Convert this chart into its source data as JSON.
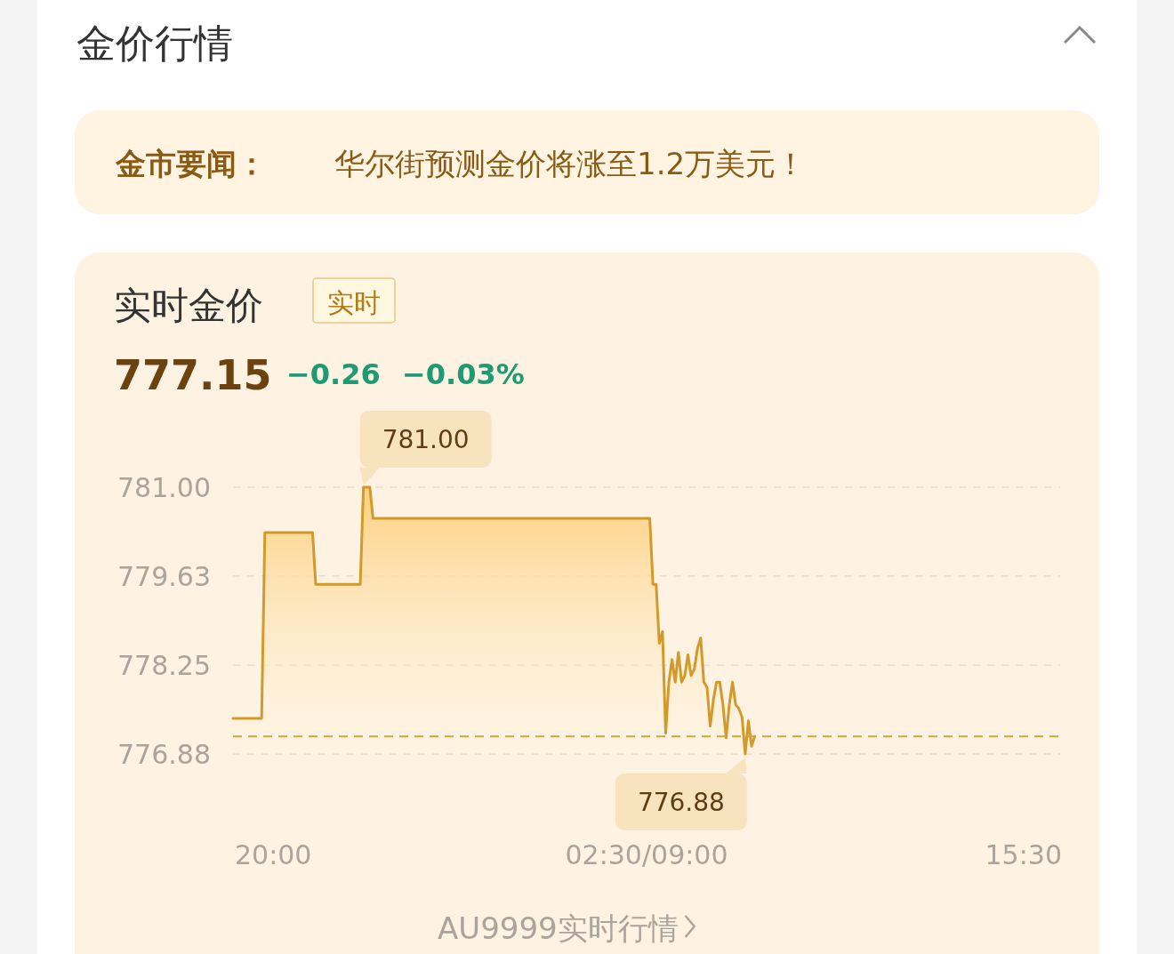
{
  "chart_data": {
    "type": "area",
    "title": "金价行情",
    "subtitle": "实时金价",
    "annotations": [
      "金市要闻：",
      "华尔街预测金价将涨至1.2万美元！",
      "实时",
      "777.15",
      "−0.26",
      "−0.03%",
      "781.00",
      {
        "text": "776.88",
        "y": 776.88
      },
      "AU9999实时行情",
      "20:00",
      "02:30/09:00",
      "15:30"
    ],
    "categories": [
      null,
      null,
      null,
      null,
      null,
      null,
      null,
      null,
      null,
      null,
      null,
      null,
      null,
      null,
      null,
      null,
      null,
      null,
      null,
      null,
      null,
      null,
      null,
      null,
      null,
      null,
      null,
      null,
      null,
      null,
      null,
      null,
      null,
      null,
      null,
      null,
      null,
      null,
      null,
      null,
      null,
      null,
      null,
      null,
      null,
      null,
      null,
      null,
      null,
      null,
      null,
      null,
      null,
      null,
      null,
      null,
      null,
      null,
      null,
      null,
      null,
      null,
      null,
      null,
      null,
      null,
      null,
      null,
      null,
      null,
      null,
      null,
      null,
      null,
      null,
      null,
      null,
      null,
      null,
      null,
      null,
      null,
      null,
      null,
      null,
      null,
      null,
      null,
      null,
      null,
      null,
      null,
      null,
      null,
      null,
      null,
      null,
      null,
      null,
      null,
      null,
      null,
      null,
      null,
      null,
      null,
      null,
      null,
      null,
      null,
      null,
      null,
      null,
      null,
      null,
      null,
      null,
      null,
      null,
      null,
      null,
      null,
      null,
      null,
      null,
      null,
      null,
      null,
      null,
      null,
      null,
      null,
      null,
      null,
      null,
      null,
      null,
      null,
      null,
      null,
      null,
      null,
      null,
      null,
      null,
      null,
      null,
      null,
      null,
      null,
      null,
      null,
      null,
      null,
      null,
      null,
      null,
      null,
      null,
      null,
      null,
      null,
      null,
      null,
      null,
      null,
      null,
      null,
      null,
      null,
      null,
      null,
      null,
      null,
      null,
      null,
      null,
      null,
      null,
      null,
      null,
      null,
      null,
      null,
      null,
      null,
      null,
      null,
      null,
      null,
      null,
      null,
      null,
      null,
      null,
      null,
      null,
      null,
      null,
      null,
      null,
      null,
      null,
      null,
      null,
      null,
      null,
      null,
      null,
      null,
      null,
      null,
      null,
      null,
      null,
      null,
      null,
      null,
      null,
      null,
      null,
      null,
      null,
      null,
      null,
      null,
      null,
      null,
      null,
      null,
      null,
      null,
      null,
      null,
      null,
      null,
      null,
      null,
      null,
      null,
      null,
      null,
      null,
      null,
      null,
      null,
      null,
      null,
      null,
      null,
      null,
      null,
      null,
      null,
      null,
      null,
      null,
      null,
      null,
      null,
      null
    ],
    "series": [
      {
        "color": "#d19a2a",
        "values": [
          777.43,
          777.43,
          777.43,
          777.43,
          777.43,
          777.43,
          777.43,
          777.43,
          777.43,
          777.43,
          780.3,
          780.3,
          780.3,
          780.3,
          780.3,
          780.3,
          780.3,
          780.3,
          780.3,
          780.3,
          780.3,
          780.3,
          780.3,
          780.3,
          780.3,
          780.3,
          779.5,
          779.5,
          779.5,
          779.5,
          779.5,
          779.5,
          779.5,
          779.5,
          779.5,
          779.5,
          779.5,
          779.5,
          779.5,
          779.5,
          779.5,
          781.0,
          781.0,
          781.0,
          780.52,
          780.52,
          780.52,
          780.52,
          780.52,
          780.52,
          780.52,
          780.52,
          780.52,
          780.52,
          780.52,
          780.52,
          780.52,
          780.52,
          780.52,
          780.52,
          780.52,
          780.52,
          780.52,
          780.52,
          780.52,
          780.52,
          780.52,
          780.52,
          780.52,
          780.52,
          780.52,
          780.52,
          780.52,
          780.52,
          780.52,
          780.52,
          780.52,
          780.52,
          780.52,
          780.52,
          780.52,
          780.52,
          780.52,
          780.52,
          780.52,
          780.52,
          780.52,
          780.52,
          780.52,
          780.52,
          780.52,
          780.52,
          780.52,
          780.52,
          780.52,
          780.52,
          780.52,
          780.52,
          780.52,
          780.52,
          780.52,
          780.52,
          780.52,
          780.52,
          780.52,
          780.52,
          780.52,
          780.52,
          780.52,
          780.52,
          780.52,
          780.52,
          780.52,
          780.52,
          780.52,
          780.52,
          780.52,
          780.52,
          780.52,
          780.52,
          780.52,
          780.52,
          780.52,
          780.52,
          780.52,
          780.52,
          780.52,
          780.52,
          780.52,
          780.52,
          780.52,
          780.52,
          779.5,
          779.5,
          778.59,
          778.77,
          777.2,
          777.99,
          778.34,
          777.99,
          778.45,
          777.99,
          778.09,
          778.41,
          778.09,
          778.19,
          778.51,
          778.67,
          777.99,
          777.91,
          777.31,
          777.72,
          777.99,
          777.99,
          777.64,
          777.13,
          777.64,
          777.99,
          777.64,
          777.58,
          777.45,
          776.88,
          777.39,
          777.0,
          777.15,
          null,
          null,
          null,
          null,
          null,
          null,
          null,
          null,
          null,
          null,
          null,
          null,
          null,
          null,
          null,
          null,
          null,
          null,
          null,
          null,
          null,
          null,
          null,
          null,
          null,
          null,
          null,
          null,
          null,
          null,
          null,
          null,
          null,
          null,
          null,
          null,
          null,
          null,
          null,
          null,
          null,
          null,
          null,
          null,
          null,
          null,
          null,
          null,
          null,
          null,
          null,
          null,
          null,
          null,
          null,
          null,
          null,
          null,
          null,
          null,
          null,
          null,
          null,
          null,
          null,
          null,
          null,
          null,
          null,
          null,
          null,
          null,
          null,
          null,
          null,
          null,
          null,
          null,
          null,
          null,
          null,
          null,
          null,
          null,
          null,
          null,
          null,
          null,
          null,
          null,
          null,
          null,
          null,
          null,
          null,
          null
        ]
      }
    ],
    "ylim": [
      776.88,
      781.0
    ],
    "yticks": [
      {
        "value": 776.88,
        "label": "776.88"
      },
      {
        "value": 778.25,
        "label": "778.25"
      },
      {
        "value": 779.63,
        "label": "779.63"
      },
      {
        "value": 781.0,
        "label": "781.00"
      }
    ],
    "grid": "y",
    "marker": "none",
    "line_style": "solid",
    "ref_lines": [
      {
        "axis": "y",
        "value": 777.15,
        "color": "#d4a23c",
        "line_style": "dashed"
      }
    ]
  }
}
